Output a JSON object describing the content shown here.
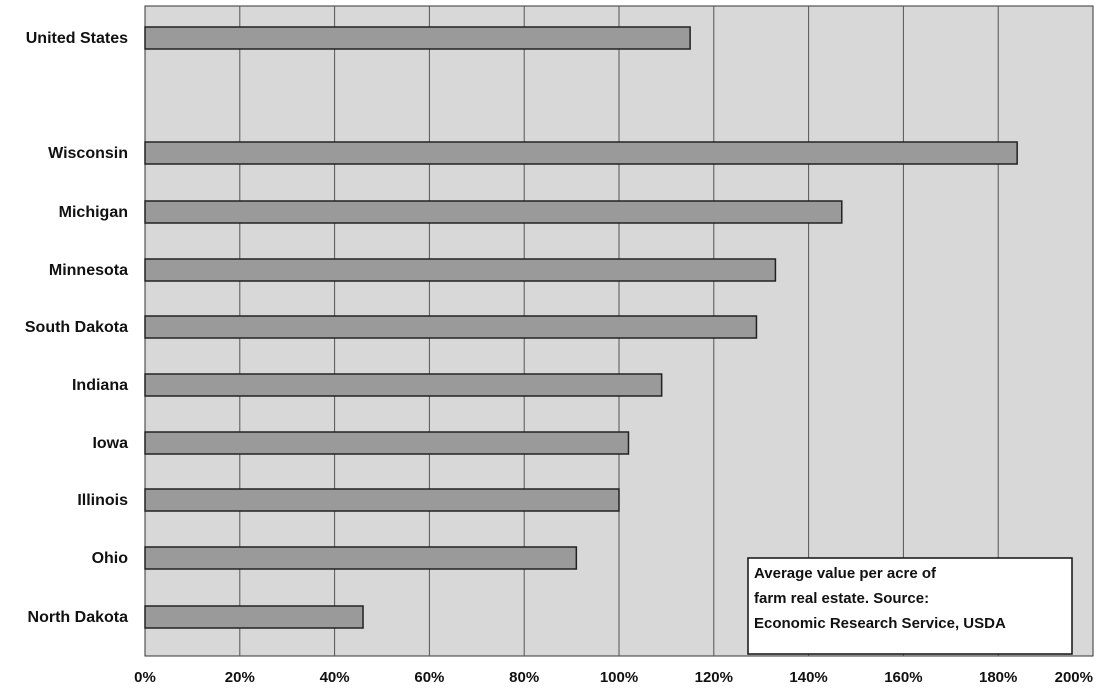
{
  "chart_data": {
    "type": "bar",
    "orientation": "horizontal",
    "categories": [
      "United States",
      "Wisconsin",
      "Michigan",
      "Minnesota",
      "South Dakota",
      "Indiana",
      "Iowa",
      "Illinois",
      "Ohio",
      "North Dakota"
    ],
    "values": [
      115,
      184,
      147,
      133,
      129,
      109,
      102,
      100,
      91,
      46
    ],
    "unit": "%",
    "xlim": [
      0,
      200
    ],
    "x_ticks": [
      "0%",
      "20%",
      "40%",
      "60%",
      "80%",
      "100%",
      "120%",
      "140%",
      "160%",
      "180%",
      "200%"
    ],
    "grid": "vertical",
    "title": "",
    "xlabel": "",
    "ylabel": "",
    "legend": "none",
    "annotation": {
      "lines": [
        "Average value per acre of",
        "farm real estate.  Source:",
        "Economic Research Service, USDA"
      ],
      "placement": "bottom-right"
    },
    "colors": {
      "plot_background": "#d8d8d8",
      "bar_fill": "#9a9a9a",
      "bar_stroke": "#222222",
      "grid": "#555555"
    }
  }
}
